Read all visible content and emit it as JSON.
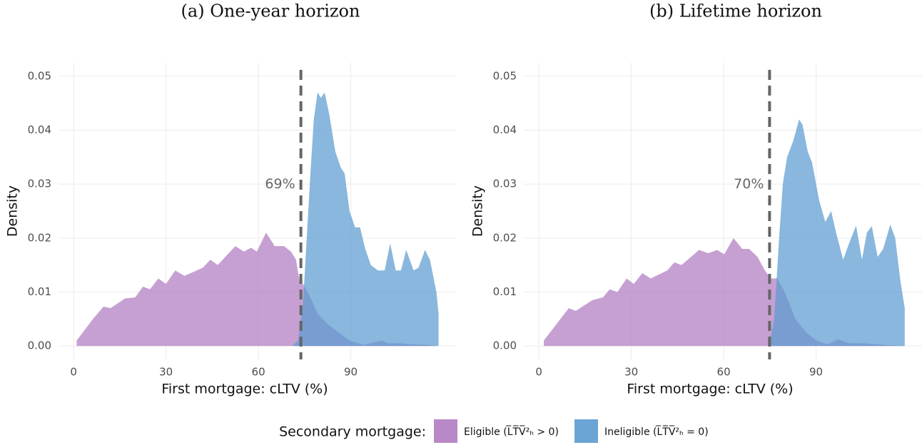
{
  "chart_data": [
    {
      "type": "area",
      "title": "(a) One-year horizon",
      "x_label": "First mortgage: cLTV (%)",
      "y_label": "Density",
      "xlim": [
        -4.9,
        124.4
      ],
      "xticks": [
        0,
        30,
        60,
        90
      ],
      "ylim": [
        -0.0025,
        0.0525
      ],
      "yticks": [
        {
          "value": 0,
          "label": "0.00"
        },
        0.01,
        0.02,
        0.03,
        0.04,
        0.05
      ],
      "grid": true,
      "vline": 73.8,
      "vline_label": "69%",
      "series": [
        {
          "name": "Eligible (L̅T̅V̅²ₕ > 0)",
          "color": "#b07cc0",
          "x": [
            1,
            6.3,
            9.7,
            12,
            16.7,
            20,
            22.5,
            24.8,
            27.5,
            30,
            33,
            36,
            42,
            44.4,
            46.8,
            52.5,
            55.3,
            57.6,
            59.5,
            62.5,
            65.3,
            68.3,
            70.6,
            72.2,
            73.4,
            74.5,
            76.9,
            79.2,
            82.6,
            86,
            89.6,
            94.2,
            100,
            102,
            105.8,
            110,
            115,
            118
          ],
          "values": [
            0.001,
            0.005,
            0.0073,
            0.007,
            0.0088,
            0.009,
            0.011,
            0.0105,
            0.0125,
            0.0115,
            0.014,
            0.013,
            0.0145,
            0.016,
            0.015,
            0.0185,
            0.0175,
            0.0182,
            0.0175,
            0.021,
            0.0185,
            0.0185,
            0.0175,
            0.016,
            0.012,
            0.0115,
            0.009,
            0.006,
            0.004,
            0.0025,
            0.001,
            0.0002,
            0.001,
            0.0005,
            0.0005,
            0.0003,
            0.0002,
            0
          ]
        },
        {
          "name": "Ineligible (L̅T̅V̅²ₕ = 0)",
          "color": "#5b9bd0",
          "x": [
            71,
            72.9,
            74.5,
            75.7,
            76.9,
            78,
            79.2,
            80.3,
            81.5,
            83,
            85,
            86.8,
            88,
            89.6,
            91.4,
            93,
            94.7,
            96.5,
            98.8,
            101,
            102.8,
            104.6,
            106.3,
            108,
            110.4,
            112,
            114.1,
            115.7,
            117.8,
            118.5
          ],
          "values": [
            0,
            0.001,
            0.008,
            0.02,
            0.032,
            0.042,
            0.047,
            0.046,
            0.047,
            0.043,
            0.036,
            0.033,
            0.032,
            0.025,
            0.022,
            0.022,
            0.018,
            0.015,
            0.014,
            0.014,
            0.019,
            0.014,
            0.014,
            0.0178,
            0.014,
            0.0145,
            0.0178,
            0.016,
            0.01,
            0.006
          ]
        }
      ]
    },
    {
      "type": "area",
      "title": "(b) Lifetime horizon",
      "x_label": "First mortgage: cLTV (%)",
      "y_label": "Density",
      "xlim": [
        -4.9,
        124.4
      ],
      "xticks": [
        0,
        30,
        60,
        90
      ],
      "ylim": [
        -0.0025,
        0.0525
      ],
      "yticks": [
        {
          "value": 0,
          "label": "0.00"
        },
        0.01,
        0.02,
        0.03,
        0.04,
        0.05
      ],
      "grid": true,
      "vline": 74.9,
      "vline_label": "70%",
      "series": [
        {
          "name": "Eligible (L̅T̅V̅²ₕ > 0)",
          "color": "#b07cc0",
          "x": [
            1.6,
            7,
            9.7,
            12,
            17.4,
            20.8,
            23,
            25.5,
            28.5,
            30.8,
            33.6,
            36.3,
            41.7,
            44,
            46.3,
            52,
            55,
            57.9,
            60.2,
            63.2,
            66,
            68.3,
            71,
            73.4,
            75.2,
            77.5,
            79.8,
            83.3,
            86.8,
            90.2,
            93.7,
            97.2,
            100.7,
            105.3,
            112.3,
            118.8
          ],
          "values": [
            0.001,
            0.005,
            0.007,
            0.0065,
            0.0085,
            0.009,
            0.0105,
            0.01,
            0.0125,
            0.0115,
            0.0135,
            0.0125,
            0.014,
            0.0155,
            0.015,
            0.0178,
            0.0172,
            0.0178,
            0.017,
            0.02,
            0.018,
            0.018,
            0.0165,
            0.014,
            0.0125,
            0.0125,
            0.01,
            0.005,
            0.0025,
            0.001,
            0.0003,
            0.0012,
            0.0005,
            0.0005,
            0.0002,
            0
          ]
        },
        {
          "name": "Ineligible (L̅T̅V̅²ₕ = 0)",
          "color": "#5b9bd0",
          "x": [
            74.8,
            76.4,
            78,
            79.2,
            80.6,
            82.6,
            84.5,
            85.6,
            87.3,
            88.7,
            91,
            93,
            94.9,
            96.5,
            98.8,
            100.7,
            103,
            104.9,
            106.5,
            108.1,
            110,
            111.8,
            114.1,
            115.7,
            117.4,
            118.8
          ],
          "values": [
            0,
            0.005,
            0.02,
            0.03,
            0.035,
            0.038,
            0.042,
            0.041,
            0.036,
            0.034,
            0.027,
            0.023,
            0.025,
            0.021,
            0.016,
            0.019,
            0.0223,
            0.016,
            0.021,
            0.0222,
            0.0165,
            0.018,
            0.0225,
            0.02,
            0.012,
            0.007
          ]
        }
      ]
    }
  ],
  "legend": {
    "title": "Secondary mortgage:"
  }
}
